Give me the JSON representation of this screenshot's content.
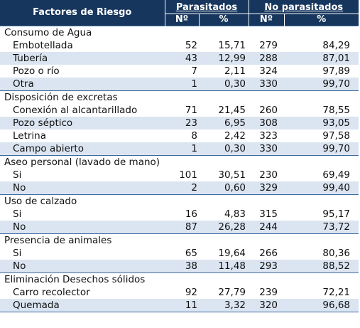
{
  "header": {
    "risk_factors": "Factores de Riesgo",
    "parasitized": "Parasitados",
    "not_parasitized": "No parasitados",
    "n": "Nº",
    "pct": "%"
  },
  "categories": [
    {
      "name": "Consumo de Agua",
      "rows": [
        {
          "label": "Embotellada",
          "n1": "52",
          "p1": "15,71",
          "n2": "279",
          "p2": "84,29"
        },
        {
          "label": "Tubería",
          "n1": "43",
          "p1": "12,99",
          "n2": "288",
          "p2": "87,01"
        },
        {
          "label": "Pozo o río",
          "n1": "7",
          "p1": "2,11",
          "n2": "324",
          "p2": "97,89"
        },
        {
          "label": "Otra",
          "n1": "1",
          "p1": "0,30",
          "n2": "330",
          "p2": "99,70"
        }
      ]
    },
    {
      "name": "Disposición de excretas",
      "rows": [
        {
          "label": "Conexión al alcantarillado",
          "n1": "71",
          "p1": "21,45",
          "n2": "260",
          "p2": "78,55"
        },
        {
          "label": "Pozo séptico",
          "n1": "23",
          "p1": "6,95",
          "n2": "308",
          "p2": "93,05"
        },
        {
          "label": "Letrina",
          "n1": "8",
          "p1": "2,42",
          "n2": "323",
          "p2": "97,58"
        },
        {
          "label": "Campo abierto",
          "n1": "1",
          "p1": "0,30",
          "n2": "330",
          "p2": "99,70"
        }
      ]
    },
    {
      "name": "Aseo personal (lavado de mano)",
      "rows": [
        {
          "label": "Si",
          "n1": "101",
          "p1": "30,51",
          "n2": "230",
          "p2": "69,49"
        },
        {
          "label": "No",
          "n1": "2",
          "p1": "0,60",
          "n2": "329",
          "p2": "99,40"
        }
      ]
    },
    {
      "name": "Uso de calzado",
      "rows": [
        {
          "label": "Si",
          "n1": "16",
          "p1": "4,83",
          "n2": "315",
          "p2": "95,17"
        },
        {
          "label": "No",
          "n1": "87",
          "p1": "26,28",
          "n2": "244",
          "p2": "73,72"
        }
      ]
    },
    {
      "name": "Presencia de animales",
      "rows": [
        {
          "label": "Si",
          "n1": "65",
          "p1": "19,64",
          "n2": "266",
          "p2": "80,36"
        },
        {
          "label": "No",
          "n1": "38",
          "p1": "11,48",
          "n2": "293",
          "p2": "88,52"
        }
      ]
    },
    {
      "name": "Eliminación Desechos sólidos",
      "rows": [
        {
          "label": "Carro recolector",
          "n1": "92",
          "p1": "27,79",
          "n2": "239",
          "p2": "72,21"
        },
        {
          "label": "Quemada",
          "n1": "11",
          "p1": "3,32",
          "n2": "320",
          "p2": "96,68"
        }
      ]
    }
  ]
}
